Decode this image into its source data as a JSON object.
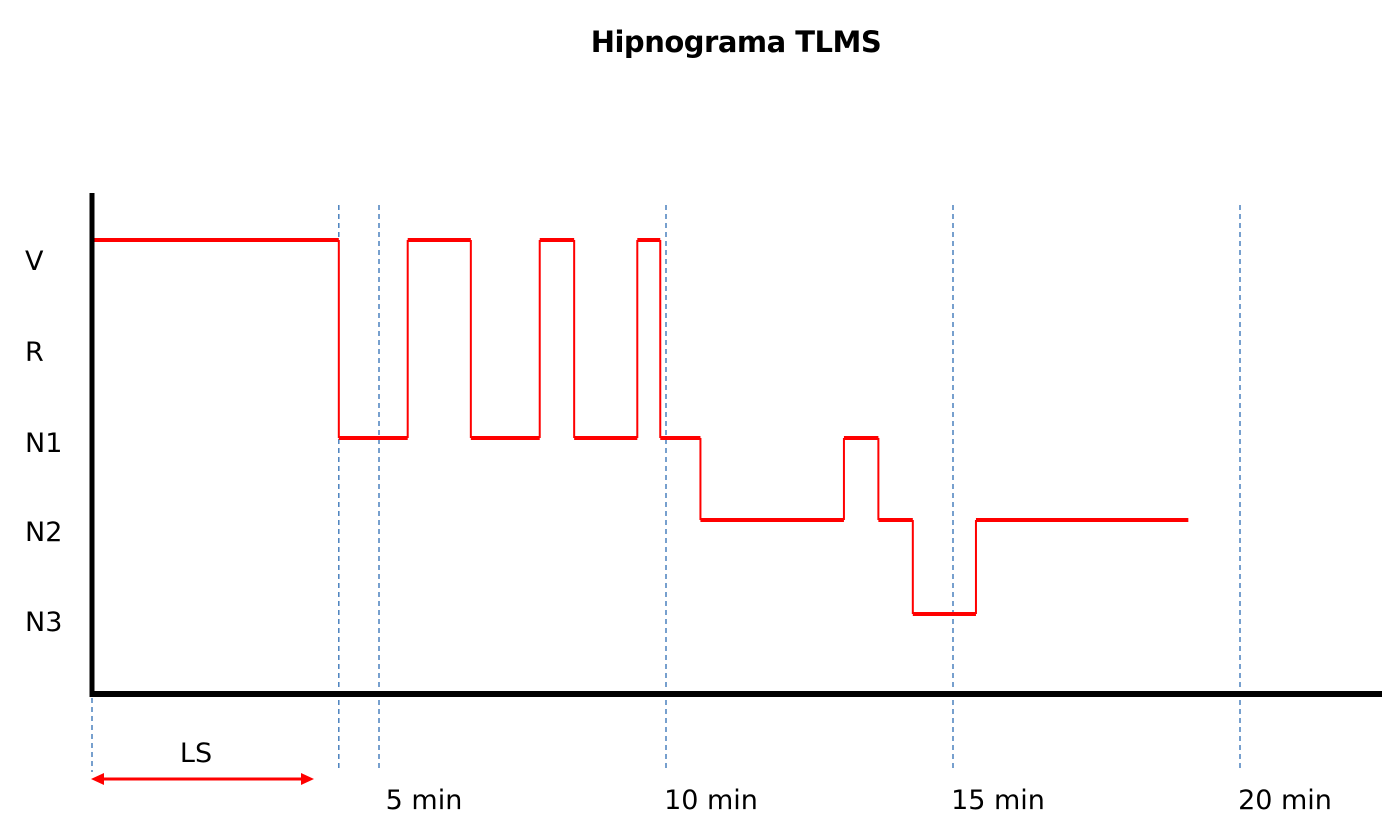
{
  "chart_data": {
    "type": "line",
    "subtype": "step",
    "title": "Hipnograma TLMS",
    "y_categories": [
      "V",
      "R",
      "N1",
      "N2",
      "N3"
    ],
    "x_tick_labels": [
      "5 min",
      "10 min",
      "15 min",
      "20 min"
    ],
    "x_ticks_min": [
      5,
      10,
      15,
      20
    ],
    "x_range_min": [
      0,
      20
    ],
    "annotation": {
      "label": "LS",
      "from_min": 0,
      "to_min": 4.3
    },
    "series": [
      {
        "color": "#ff0000",
        "steps": [
          {
            "start": 0.0,
            "end": 4.3,
            "stage": "V"
          },
          {
            "start": 4.3,
            "end": 5.5,
            "stage": "N1"
          },
          {
            "start": 5.5,
            "end": 6.6,
            "stage": "V"
          },
          {
            "start": 6.6,
            "end": 7.8,
            "stage": "N1"
          },
          {
            "start": 7.8,
            "end": 8.4,
            "stage": "V"
          },
          {
            "start": 8.4,
            "end": 9.5,
            "stage": "N1"
          },
          {
            "start": 9.5,
            "end": 9.9,
            "stage": "V"
          },
          {
            "start": 9.9,
            "end": 10.6,
            "stage": "N1"
          },
          {
            "start": 10.6,
            "end": 13.1,
            "stage": "N2"
          },
          {
            "start": 13.1,
            "end": 13.7,
            "stage": "N1"
          },
          {
            "start": 13.7,
            "end": 14.3,
            "stage": "N2"
          },
          {
            "start": 14.3,
            "end": 15.4,
            "stage": "N3"
          },
          {
            "start": 15.4,
            "end": 19.1,
            "stage": "N2"
          }
        ]
      }
    ],
    "grid": "dashed vertical lines at ticks",
    "colors": {
      "line": "#ff0000",
      "grid": "#2e6db4",
      "arrow": "#ff0000",
      "axis": "#000000"
    }
  }
}
